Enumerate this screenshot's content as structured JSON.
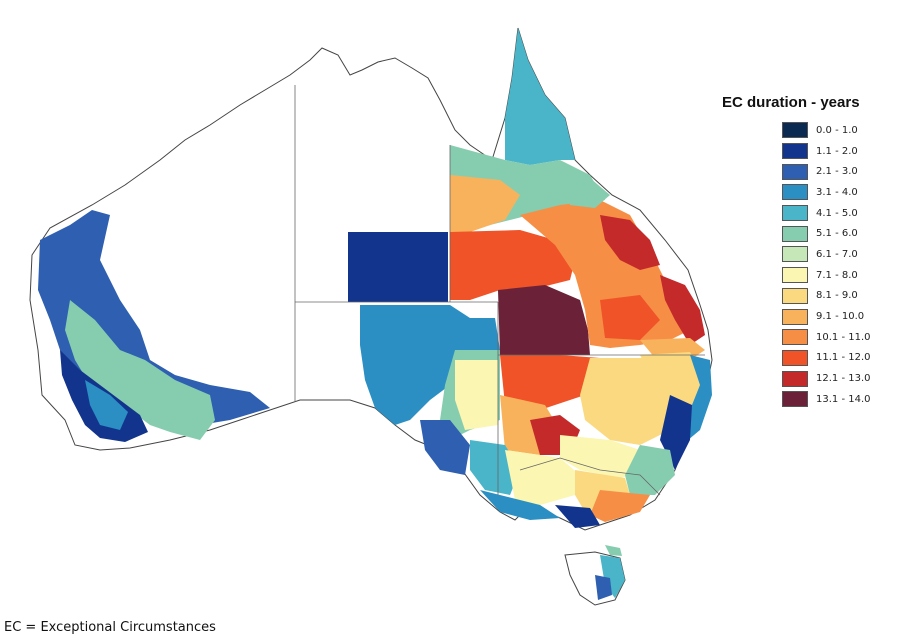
{
  "legend": {
    "title": "EC duration - years",
    "items": [
      {
        "label": "0.0 - 1.0",
        "color": "#0b2a52"
      },
      {
        "label": "1.1 - 2.0",
        "color": "#12348c"
      },
      {
        "label": "2.1 - 3.0",
        "color": "#2e5fb0"
      },
      {
        "label": "3.1 - 4.0",
        "color": "#2b8fc4"
      },
      {
        "label": "4.1 - 5.0",
        "color": "#4ab4c8"
      },
      {
        "label": "5.1 - 6.0",
        "color": "#86cdb0"
      },
      {
        "label": "6.1 - 7.0",
        "color": "#c6e8b8"
      },
      {
        "label": "7.1 - 8.0",
        "color": "#fbf6b2"
      },
      {
        "label": "8.1 - 9.0",
        "color": "#fbd980"
      },
      {
        "label": "9.1 - 10.0",
        "color": "#f9b25c"
      },
      {
        "label": "10.1 - 11.0",
        "color": "#f68f45"
      },
      {
        "label": "11.1 - 12.0",
        "color": "#ef5327"
      },
      {
        "label": "12.1 - 13.0",
        "color": "#c52a2a"
      },
      {
        "label": "13.1 - 14.0",
        "color": "#6b2238"
      }
    ]
  },
  "footnote": "EC = Exceptional Circumstances"
}
